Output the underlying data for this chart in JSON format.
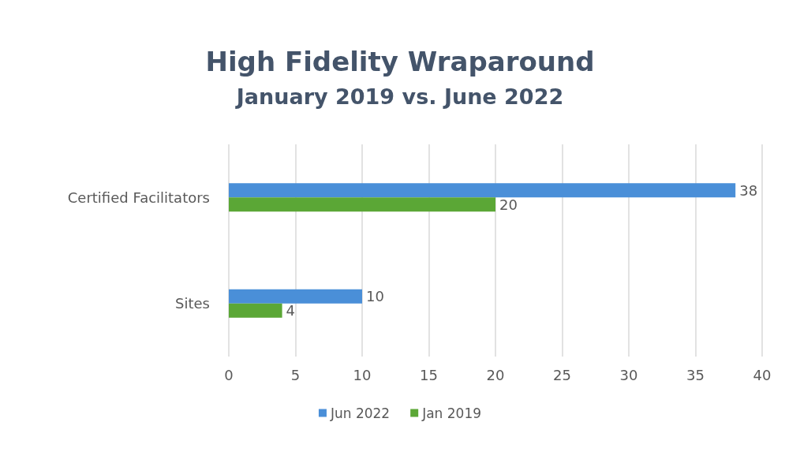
{
  "chart_data": {
    "type": "bar",
    "orientation": "horizontal",
    "title": "High Fidelity Wraparound",
    "subtitle": "January 2019 vs. June 2022",
    "categories": [
      "Certified Facilitators",
      "Sites"
    ],
    "series": [
      {
        "name": "Jun 2022",
        "color": "#4a8fd8",
        "values": [
          38,
          10
        ]
      },
      {
        "name": "Jan 2019",
        "color": "#5ba736",
        "values": [
          20,
          4
        ]
      }
    ],
    "xlim": [
      0,
      40
    ],
    "xticks": [
      0,
      5,
      10,
      15,
      20,
      25,
      30,
      35,
      40
    ],
    "grid": "x",
    "legend": "bottom",
    "data_labels": true
  }
}
